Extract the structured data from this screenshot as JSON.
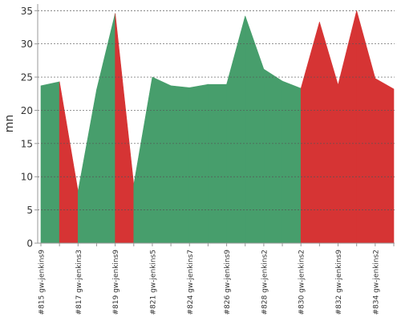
{
  "chart_data": {
    "type": "area",
    "ylabel": "mn",
    "ylim": [
      0,
      36
    ],
    "y_ticks": [
      0,
      5,
      10,
      15,
      20,
      25,
      30,
      35
    ],
    "grid": true,
    "x_tick_labels": [
      "#815 gw-jenkins9",
      "#817 gw-jenkins3",
      "#819 gw-jenkins9",
      "#821 gw-jenkins5",
      "#824 gw-jenkins7",
      "#826 gw-jenkins9",
      "#828 gw-jenkins2",
      "#830 gw-jenkins2",
      "#832 gw-jenkins9",
      "#834 gw-jenkins2"
    ],
    "points": [
      {
        "y": 23.7,
        "status": "success"
      },
      {
        "y": 24.3,
        "status": "success"
      },
      {
        "y": 7.8,
        "status": "failure"
      },
      {
        "y": 23.1,
        "status": "success"
      },
      {
        "y": 34.6,
        "status": "success"
      },
      {
        "y": 8.8,
        "status": "failure"
      },
      {
        "y": 25.0,
        "status": "success"
      },
      {
        "y": 23.7,
        "status": "success"
      },
      {
        "y": 23.4,
        "status": "success"
      },
      {
        "y": 23.9,
        "status": "success"
      },
      {
        "y": 23.9,
        "status": "success"
      },
      {
        "y": 34.2,
        "status": "success"
      },
      {
        "y": 26.2,
        "status": "success"
      },
      {
        "y": 24.4,
        "status": "success"
      },
      {
        "y": 23.3,
        "status": "success"
      },
      {
        "y": 33.3,
        "status": "failure"
      },
      {
        "y": 23.8,
        "status": "failure"
      },
      {
        "y": 35.0,
        "status": "failure"
      },
      {
        "y": 24.8,
        "status": "failure"
      },
      {
        "y": 23.2,
        "status": "failure"
      }
    ],
    "colors": {
      "success": "#479e6c",
      "failure": "#d63434"
    }
  }
}
